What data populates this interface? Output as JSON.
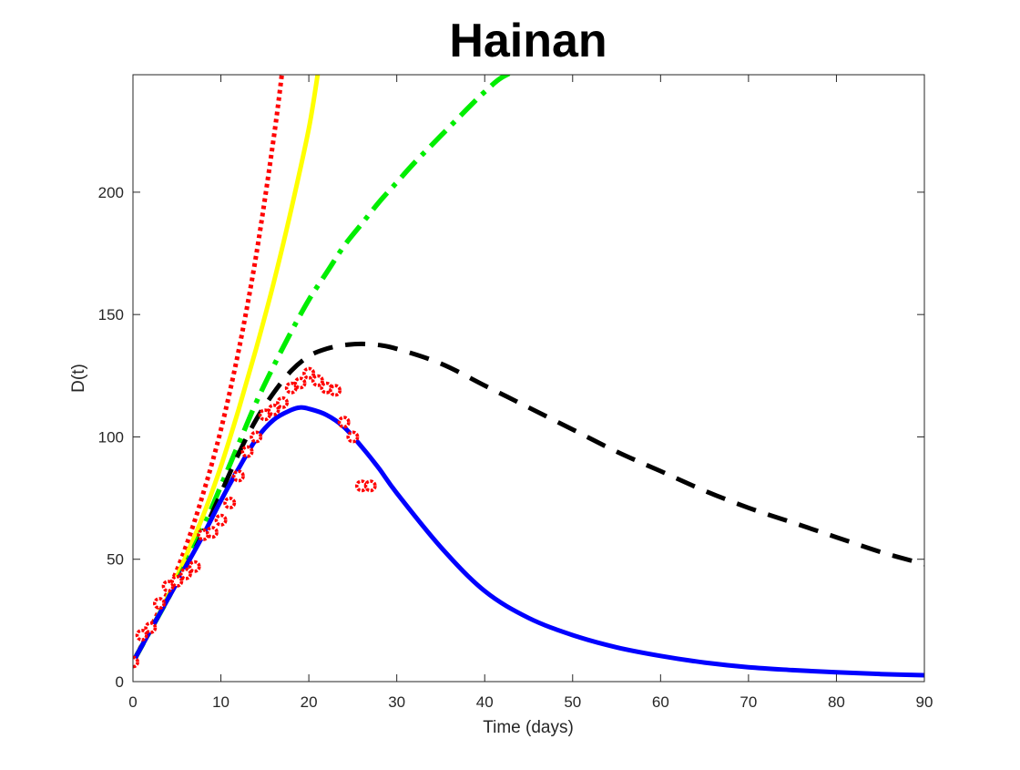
{
  "chart_data": {
    "type": "line",
    "title": "Hainan",
    "xlabel": "Time (days)",
    "ylabel": "D(t)",
    "xlim": [
      0,
      90
    ],
    "ylim": [
      0,
      248
    ],
    "xticks": [
      0,
      10,
      20,
      30,
      40,
      50,
      60,
      70,
      80,
      90
    ],
    "yticks": [
      0,
      50,
      100,
      150,
      200
    ],
    "grid": false,
    "legend": "none",
    "box": true,
    "series": [
      {
        "style": "solid",
        "color": "#0000ff",
        "x": [
          0,
          2,
          4,
          6,
          8,
          10,
          12,
          14,
          16,
          18,
          19,
          20,
          22,
          24,
          26,
          28,
          30,
          35,
          40,
          45,
          50,
          55,
          60,
          65,
          70,
          75,
          80,
          85,
          90
        ],
        "y": [
          8,
          21,
          34,
          47,
          60,
          74,
          87,
          99,
          107,
          111,
          112,
          111.5,
          109,
          104,
          96,
          87,
          77,
          55,
          37,
          26,
          19,
          14,
          10.5,
          7.8,
          5.9,
          4.7,
          3.8,
          3.1,
          2.6
        ]
      },
      {
        "style": "dashed",
        "color": "#000000",
        "x": [
          0,
          2,
          4,
          6,
          8,
          10,
          12,
          14,
          16,
          18,
          20,
          22,
          24,
          26,
          28,
          30,
          35,
          40,
          45,
          50,
          55,
          60,
          65,
          70,
          75,
          80,
          85,
          90
        ],
        "y": [
          8,
          21,
          34,
          47,
          61,
          77,
          93,
          107,
          118,
          127,
          133,
          136,
          137.5,
          138,
          137.5,
          136,
          130,
          121,
          112,
          103,
          94,
          86,
          78,
          71,
          65,
          59,
          53,
          48
        ]
      },
      {
        "style": "dashdot",
        "color": "#00ee00",
        "x": [
          0,
          2,
          4,
          6,
          8,
          10,
          12,
          14,
          16,
          18,
          20,
          22,
          24,
          26,
          28,
          30,
          32,
          35,
          38,
          40,
          42,
          45
        ],
        "y": [
          8,
          21,
          34,
          48,
          63,
          80,
          97,
          114,
          129,
          143,
          156,
          167,
          178,
          187,
          196,
          204,
          212,
          223,
          234,
          241,
          247,
          252
        ]
      },
      {
        "style": "solid",
        "color": "#ffff00",
        "x": [
          0,
          2,
          4,
          6,
          8,
          10,
          12,
          14,
          16,
          18,
          20,
          21
        ],
        "y": [
          8,
          21,
          35,
          51,
          68,
          88,
          111,
          136,
          163,
          193,
          226,
          248
        ]
      },
      {
        "style": "dotted",
        "color": "#ff0000",
        "x": [
          0,
          2,
          4,
          6,
          8,
          10,
          12,
          14,
          16,
          17
        ],
        "y": [
          8,
          22,
          37,
          55,
          77,
          103,
          135,
          174,
          222,
          250
        ]
      },
      {
        "style": "markers",
        "color": "#ff0000",
        "x": [
          0,
          1,
          2,
          3,
          4,
          5,
          6,
          7,
          8,
          9,
          10,
          11,
          12,
          13,
          14,
          15,
          16,
          17,
          18,
          19,
          20,
          21,
          22,
          23,
          24,
          25,
          26,
          27
        ],
        "y": [
          8,
          19,
          22,
          32,
          39,
          41,
          44,
          47,
          60,
          61,
          66,
          73,
          84,
          94,
          100,
          109,
          111,
          114,
          120,
          122,
          126,
          123,
          120,
          119,
          106,
          100,
          80,
          80
        ]
      }
    ]
  }
}
